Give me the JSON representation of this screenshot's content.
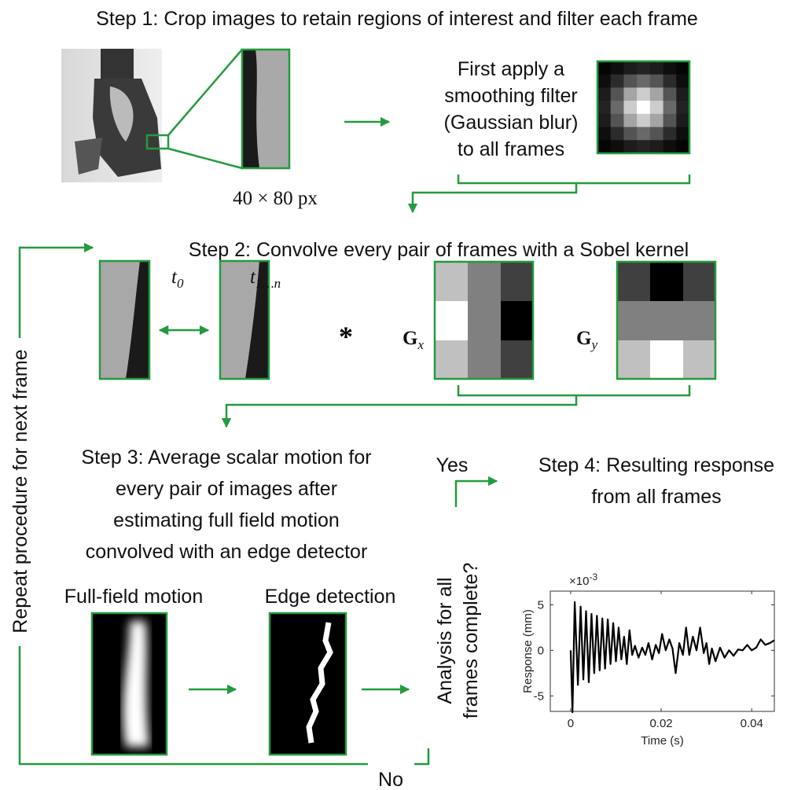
{
  "step1": {
    "title": "Step 1: Crop images to retain regions of interest and filter each frame",
    "crop_size": "40 × 80 px",
    "filter_text": [
      "First apply a",
      "smoothing filter",
      "(Gaussian blur)",
      "to all frames"
    ]
  },
  "step2": {
    "title": "Step 2: Convolve every pair of frames with a Sobel kernel",
    "frame_labels": [
      {
        "base": "t",
        "sub": "0"
      },
      {
        "base": "t",
        "sub": "1…n"
      }
    ],
    "operator": "*",
    "kernels": [
      {
        "base": "G",
        "sub": "x"
      },
      {
        "base": "G",
        "sub": "y"
      }
    ]
  },
  "step3": {
    "lines": [
      "Step 3: Average scalar motion for",
      "every pair of images after",
      "estimating full field motion",
      "convolved with an edge detector"
    ],
    "panels": [
      "Full-field motion",
      "Edge detection"
    ]
  },
  "decision": {
    "question": [
      "Analysis for all",
      "frames complete?"
    ],
    "yes": "Yes",
    "no": "No"
  },
  "loop_label": "Repeat procedure for next frame",
  "step4": {
    "lines": [
      "Step 4: Resulting response",
      "from all frames"
    ]
  },
  "chart_data": {
    "type": "line",
    "xlabel": "Time (s)",
    "ylabel": "Response (mm)",
    "y_multiplier": {
      "base": "×10",
      "power": "-3"
    },
    "color": "#000000",
    "x": [
      0,
      0.0004,
      0.0009,
      0.0016,
      0.0022,
      0.0028,
      0.0034,
      0.004,
      0.0046,
      0.0052,
      0.0058,
      0.0064,
      0.007,
      0.0076,
      0.0082,
      0.0088,
      0.0094,
      0.01,
      0.0106,
      0.0112,
      0.0118,
      0.0124,
      0.013,
      0.0136,
      0.0142,
      0.015,
      0.0158,
      0.0165,
      0.0172,
      0.018,
      0.0188,
      0.0195,
      0.0202,
      0.021,
      0.0218,
      0.0225,
      0.0232,
      0.024,
      0.0248,
      0.0255,
      0.0262,
      0.027,
      0.0278,
      0.0286,
      0.0294,
      0.03,
      0.0306,
      0.0312,
      0.032,
      0.033,
      0.034,
      0.035,
      0.036,
      0.037,
      0.038,
      0.039,
      0.04,
      0.041,
      0.042,
      0.043,
      0.044,
      0.045
    ],
    "values": [
      0,
      -6.8,
      5.3,
      -3.8,
      4.8,
      -3.2,
      4.3,
      -3.5,
      4,
      -2.5,
      3.8,
      -2.2,
      3.5,
      -2,
      3.4,
      -1.5,
      3,
      -1.2,
      2.5,
      -1,
      1.5,
      -1.5,
      2.2,
      -0.5,
      0.5,
      -0.8,
      0.3,
      -0.5,
      0.8,
      -1,
      0.6,
      -0.3,
      1.8,
      0,
      1.2,
      0.2,
      -2.5,
      0.8,
      -0.5,
      2.5,
      -0.5,
      1.5,
      0,
      2.5,
      -0.3,
      0.8,
      -1.5,
      0.2,
      -1.2,
      0.3,
      -0.8,
      0,
      -0.6,
      0.1,
      0,
      0.6,
      0,
      0.3,
      1.2,
      0.6,
      0.8,
      1.1
    ],
    "xlim": [
      -0.0045,
      0.045
    ],
    "ylim": [
      -6.7,
      6.5
    ],
    "xticks": [
      0,
      0.02,
      0.04
    ],
    "yticks": [
      -5,
      0,
      5
    ]
  }
}
